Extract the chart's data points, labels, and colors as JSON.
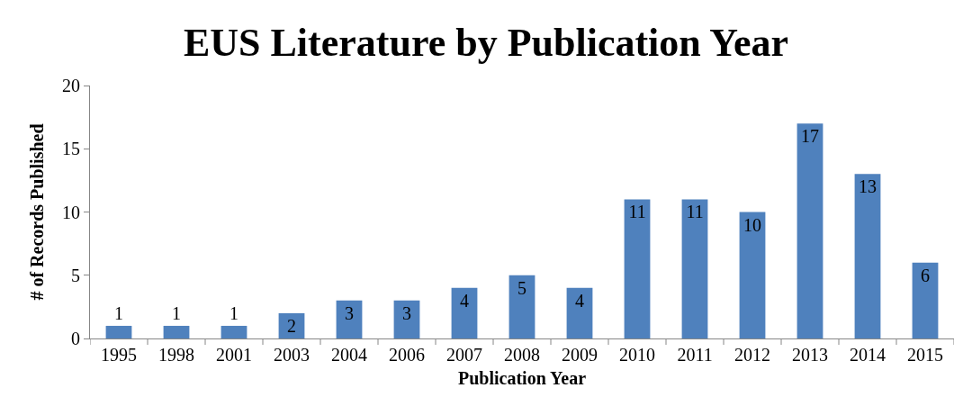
{
  "chart_data": {
    "type": "bar",
    "title": "EUS Literature by Publication Year",
    "xlabel": "Publication Year",
    "ylabel": "# of Records Published",
    "categories": [
      "1995",
      "1998",
      "2001",
      "2003",
      "2004",
      "2006",
      "2007",
      "2008",
      "2009",
      "2010",
      "2011",
      "2012",
      "2013",
      "2014",
      "2015"
    ],
    "values": [
      1,
      1,
      1,
      2,
      3,
      3,
      4,
      5,
      4,
      11,
      11,
      10,
      17,
      13,
      6
    ],
    "color": "#4f81bd",
    "ylim": [
      0,
      20
    ],
    "yticks": [
      0,
      5,
      10,
      15,
      20
    ],
    "legend": false,
    "data_labels": true
  }
}
